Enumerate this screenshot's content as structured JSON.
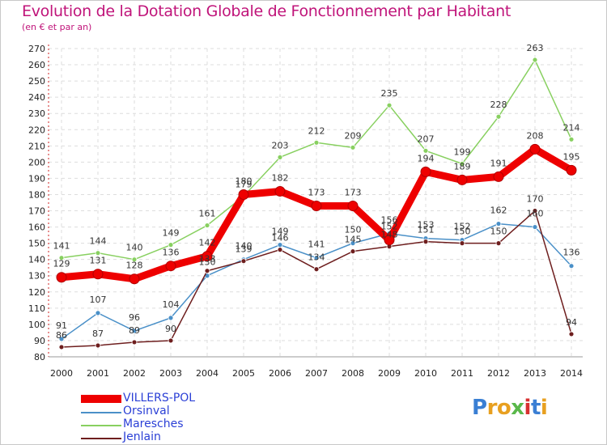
{
  "chart_data": {
    "type": "line",
    "title": "Evolution de la Dotation Globale de Fonctionnement par Habitant",
    "subtitle": "(en € et par an)",
    "xlabel": "",
    "ylabel": "",
    "ylim": [
      80,
      270
    ],
    "yticks": [
      80,
      90,
      100,
      110,
      120,
      130,
      140,
      150,
      160,
      170,
      180,
      190,
      200,
      210,
      220,
      230,
      240,
      250,
      260,
      270
    ],
    "categories": [
      "2000",
      "2001",
      "2002",
      "2003",
      "2004",
      "2005",
      "2006",
      "2007",
      "2008",
      "2009",
      "2010",
      "2011",
      "2012",
      "2013",
      "2014"
    ],
    "grid": true,
    "legend_position": "bottom-left",
    "series": [
      {
        "name": "VILLERS-POL",
        "color": "#ee0000",
        "values": [
          129,
          131,
          128,
          136,
          142,
          180,
          182,
          173,
          173,
          152,
          194,
          189,
          191,
          208,
          195
        ],
        "labels": [
          "129",
          "131",
          "128",
          "136",
          "142",
          "180",
          "182",
          "173",
          "173",
          "152",
          "194",
          "189",
          "191",
          "208",
          "195"
        ]
      },
      {
        "name": "Orsinval",
        "color": "#4a90c8",
        "values": [
          91,
          107,
          96,
          104,
          130,
          140,
          149,
          141,
          150,
          156,
          153,
          152,
          162,
          160,
          136
        ],
        "labels": [
          "91",
          "107",
          "96",
          "104",
          "130",
          "140",
          "149",
          "141",
          "150",
          "156",
          "153",
          "152",
          "162",
          "160",
          "136"
        ]
      },
      {
        "name": "Maresches",
        "color": "#88d060",
        "values": [
          141,
          144,
          140,
          149,
          161,
          179,
          203,
          212,
          209,
          235,
          207,
          199,
          228,
          263,
          214
        ],
        "labels": [
          "141",
          "144",
          "140",
          "149",
          "161",
          "179",
          "203",
          "212",
          "209",
          "235",
          "207",
          "199",
          "228",
          "263",
          "214"
        ]
      },
      {
        "name": "Jenlain",
        "color": "#6e1e1e",
        "values": [
          86,
          87,
          89,
          90,
          133,
          139,
          146,
          134,
          145,
          148,
          151,
          150,
          150,
          170,
          94
        ],
        "labels": [
          "86",
          "87",
          "89",
          "90",
          "133",
          "139",
          "146",
          "134",
          "145",
          "148",
          "151",
          "150",
          "150",
          "170",
          "94"
        ]
      }
    ]
  },
  "logo": {
    "text": "Proxiti",
    "letters": [
      "P",
      "r",
      "o",
      "x",
      "i",
      "t",
      "i"
    ],
    "colors": [
      "#3a7fd4",
      "#e8a020",
      "#e8a020",
      "#5ab84a",
      "#d83030",
      "#3a7fd4",
      "#e8a020"
    ]
  }
}
